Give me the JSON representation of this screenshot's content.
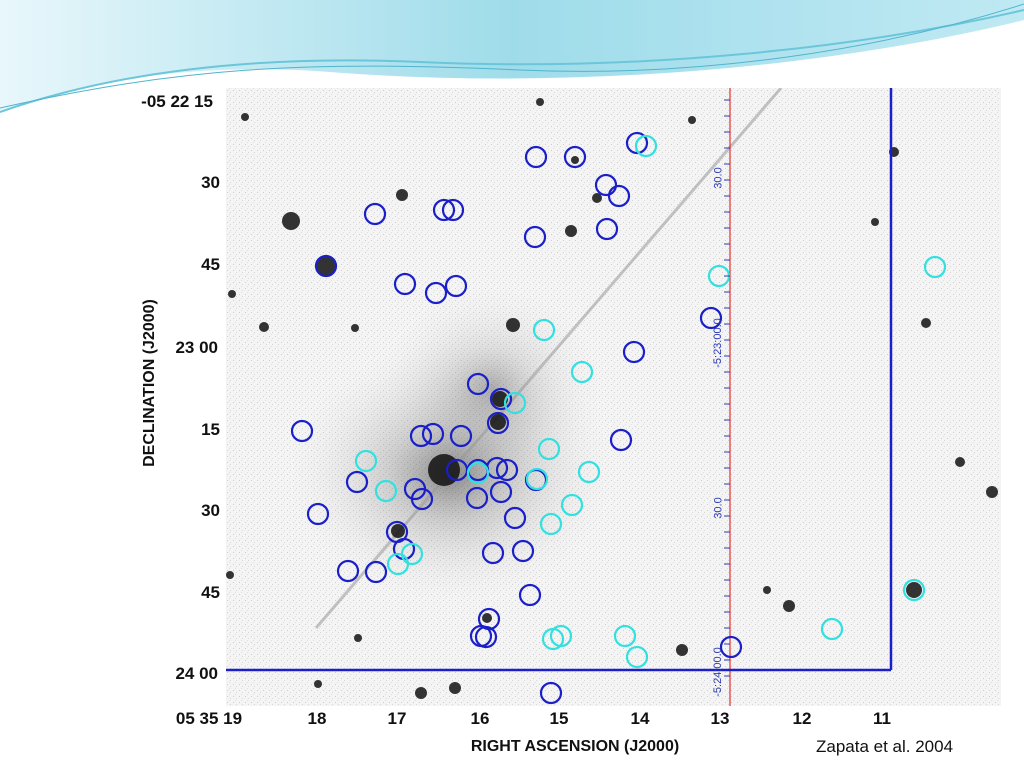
{
  "figure": {
    "credit": "Zapata et al. 2004",
    "ylabel": "DECLINATION (J2000)",
    "xlabel": "RIGHT ASCENSION (J2000)",
    "dec_ticks": [
      "-05 22 15",
      "30",
      "45",
      "23 00",
      "15",
      "30",
      "45",
      "24 00"
    ],
    "ra_ticks": [
      "05 35 19",
      "18",
      "17",
      "16",
      "15",
      "14",
      "13",
      "12",
      "11"
    ],
    "overlay_ticks": [
      "30.0",
      "-5:23:00.0",
      "30.0",
      "-5:24:00.0"
    ],
    "colors": {
      "dark_circle": "#1a1fc8",
      "cyan_circle": "#33e0e0",
      "frame": "#1a1fc8",
      "red_line": "#e03030",
      "header_wave": "#7fd3e6"
    }
  }
}
